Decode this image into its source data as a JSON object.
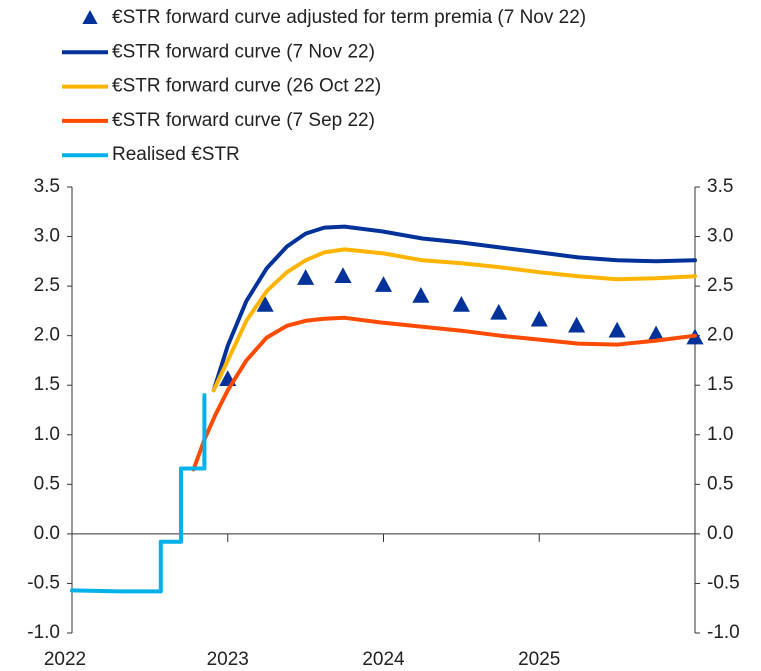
{
  "chart_data": {
    "type": "line",
    "xlim": [
      2022,
      2026
    ],
    "xticks": [
      2022,
      2023,
      2024,
      2025
    ],
    "ylim": [
      -1,
      3.5
    ],
    "yticks": [
      3.5,
      {
        "value": 3,
        "label": "3.0"
      },
      2.5,
      {
        "value": 2,
        "label": "2.0"
      },
      1.5,
      {
        "value": 1,
        "label": "1.0"
      },
      0.5,
      {
        "value": 0,
        "label": "0.0"
      },
      -0.5,
      {
        "value": -1,
        "label": "-1.0"
      }
    ],
    "y2lim": [
      -1,
      3.5
    ],
    "y2ticks": [
      3.5,
      {
        "value": 3,
        "label": "3.0"
      },
      2.5,
      {
        "value": 2,
        "label": "2.0"
      },
      1.5,
      {
        "value": 1,
        "label": "1.0"
      },
      0.5,
      {
        "value": 0,
        "label": "0.0"
      },
      -0.5,
      {
        "value": -1,
        "label": "-1.0"
      }
    ],
    "legend": "top-left",
    "series": [
      {
        "name": "€STR forward curve adjusted for term premia (7 Nov 22)",
        "color": "#003299",
        "marker": "triangle",
        "x": [
          2023.0,
          2023.24,
          2023.5,
          2023.74,
          2024.0,
          2024.24,
          2024.5,
          2024.74,
          2025.0,
          2025.24,
          2025.5,
          2025.75,
          2026.0
        ],
        "values": [
          1.56,
          2.31,
          2.58,
          2.6,
          2.51,
          2.4,
          2.31,
          2.23,
          2.16,
          2.1,
          2.05,
          2.01,
          1.98
        ]
      },
      {
        "name": "€STR forward curve (7 Nov 22)",
        "color": "#003299",
        "x": [
          2022.91,
          2023.0,
          2023.12,
          2023.25,
          2023.38,
          2023.5,
          2023.62,
          2023.75,
          2024.0,
          2024.25,
          2024.5,
          2024.75,
          2025.0,
          2025.25,
          2025.5,
          2025.75,
          2026.0
        ],
        "values": [
          1.45,
          1.9,
          2.35,
          2.68,
          2.9,
          3.03,
          3.09,
          3.1,
          3.05,
          2.98,
          2.94,
          2.89,
          2.84,
          2.79,
          2.76,
          2.75,
          2.76
        ]
      },
      {
        "name": "€STR forward curve (26 Oct 22)",
        "color": "#ffb400",
        "x": [
          2022.91,
          2023.0,
          2023.12,
          2023.25,
          2023.38,
          2023.5,
          2023.62,
          2023.75,
          2024.0,
          2024.25,
          2024.5,
          2024.75,
          2025.0,
          2025.25,
          2025.5,
          2025.75,
          2026.0
        ],
        "values": [
          1.45,
          1.75,
          2.15,
          2.45,
          2.64,
          2.76,
          2.84,
          2.87,
          2.83,
          2.76,
          2.73,
          2.69,
          2.64,
          2.6,
          2.57,
          2.58,
          2.6
        ]
      },
      {
        "name": "€STR forward curve (7 Sep 22)",
        "color": "#ff4b00",
        "x": [
          2022.78,
          2022.85,
          2022.92,
          2023.0,
          2023.12,
          2023.25,
          2023.38,
          2023.5,
          2023.62,
          2023.75,
          2024.0,
          2024.25,
          2024.5,
          2024.75,
          2025.0,
          2025.25,
          2025.5,
          2025.75,
          2026.0
        ],
        "values": [
          0.65,
          0.95,
          1.2,
          1.45,
          1.75,
          1.98,
          2.1,
          2.15,
          2.17,
          2.18,
          2.13,
          2.09,
          2.05,
          2.0,
          1.96,
          1.92,
          1.91,
          1.95,
          2.0
        ]
      },
      {
        "name": "Realised €STR",
        "color": "#00b1ea",
        "x": [
          2022.0,
          2022.3,
          2022.57,
          2022.57,
          2022.7,
          2022.7,
          2022.84,
          2022.84,
          2022.85,
          2022.85
        ],
        "values": [
          -0.57,
          -0.58,
          -0.58,
          -0.08,
          -0.08,
          0.66,
          0.66,
          0.66,
          0.66,
          1.4
        ]
      }
    ]
  }
}
